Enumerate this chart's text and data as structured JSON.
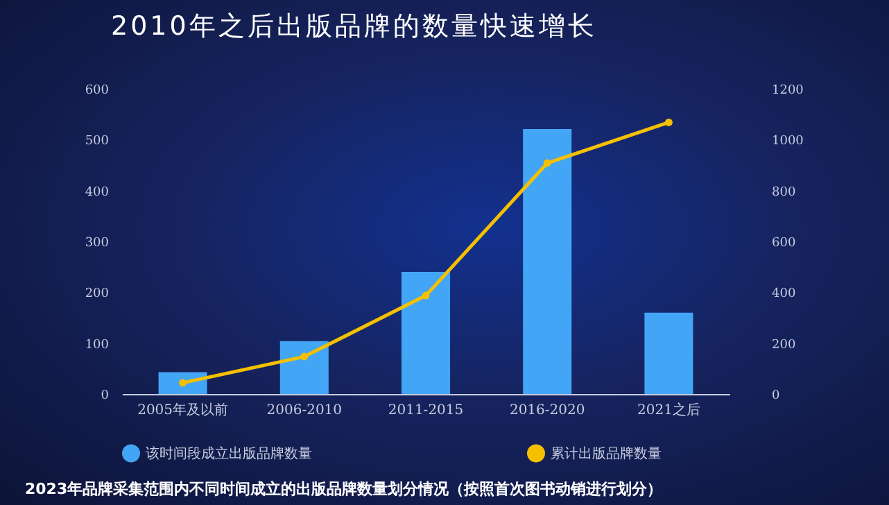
{
  "chart_data": {
    "type": "bar",
    "title": "2010年之后出版品牌的数量快速增长",
    "annotations": [
      "2023年品牌采集范围内不同时间成立的出版品牌数量划分情况（按照首次图书动销进行划分）"
    ],
    "categories": [
      "2005年及以前",
      "2006-2010",
      "2011-2015",
      "2016-2020",
      "2021之后"
    ],
    "series": [
      {
        "name": "该时间段成立出版品牌数量",
        "color": "#42a5f5",
        "values": [
          43,
          104,
          240,
          521,
          160
        ]
      },
      {
        "name": "累计出版品牌数量",
        "type": "line",
        "axis": "y2",
        "color": "#f5c000",
        "values": [
          44,
          147,
          387,
          908,
          1068
        ]
      }
    ],
    "ylim": [
      0,
      600
    ],
    "yticks": [
      0,
      100,
      200,
      300,
      400,
      500,
      600
    ],
    "y2lim": [
      0,
      1200
    ],
    "y2ticks": [
      0,
      200,
      400,
      600,
      800,
      1000,
      1200
    ],
    "legend": "bottom",
    "marker": "circle",
    "line_style": "solid"
  }
}
